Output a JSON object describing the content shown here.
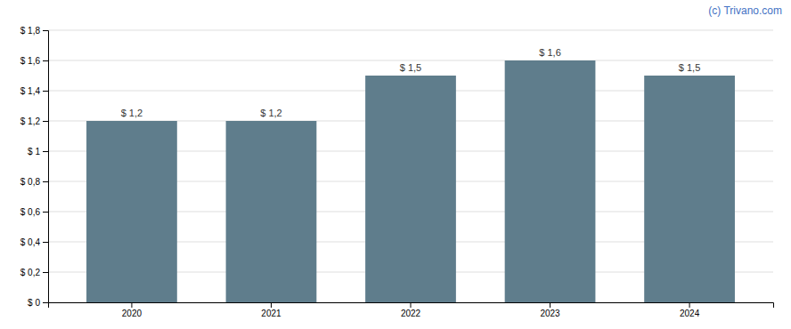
{
  "chart_data": {
    "type": "bar",
    "categories": [
      "2020",
      "2021",
      "2022",
      "2023",
      "2024"
    ],
    "values": [
      1.2,
      1.2,
      1.5,
      1.6,
      1.5
    ],
    "value_labels": [
      "$ 1,2",
      "$ 1,2",
      "$ 1,5",
      "$ 1,6",
      "$ 1,5"
    ],
    "data_labels": true,
    "color": "#5f7d8c",
    "ylim": [
      0,
      1.8
    ],
    "yticks": [
      {
        "value": 0,
        "label": "$ 0"
      },
      {
        "value": 0.2,
        "label": "$ 0,2"
      },
      {
        "value": 0.4,
        "label": "$ 0,4"
      },
      {
        "value": 0.6,
        "label": "$ 0,6"
      },
      {
        "value": 0.8,
        "label": "$ 0,8"
      },
      {
        "value": 1.0,
        "label": "$ 1"
      },
      {
        "value": 1.2,
        "label": "$ 1,2"
      },
      {
        "value": 1.4,
        "label": "$ 1,4"
      },
      {
        "value": 1.6,
        "label": "$ 1,6"
      },
      {
        "value": 1.8,
        "label": "$ 1,8"
      }
    ],
    "grid": true,
    "annotation": "(c) Trivano.com"
  }
}
